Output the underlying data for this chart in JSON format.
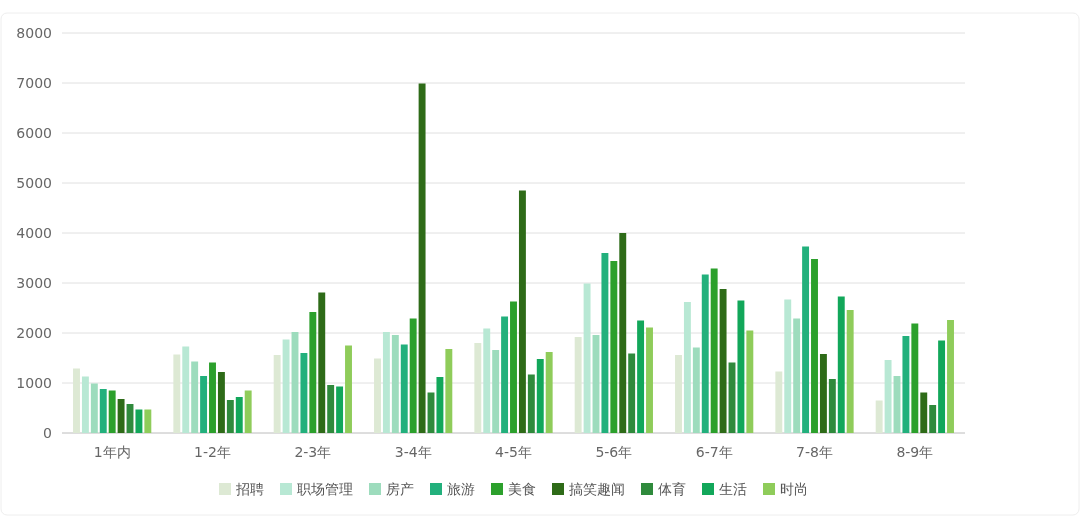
{
  "chart_data": {
    "type": "bar",
    "categories": [
      "1年内",
      "1-2年",
      "2-3年",
      "3-4年",
      "4-5年",
      "5-6年",
      "6-7年",
      "7-8年",
      "8-9年"
    ],
    "series": [
      {
        "name": "招聘",
        "color": "#dde9d4",
        "values": [
          1290,
          1570,
          1560,
          1490,
          1800,
          1920,
          1560,
          1230,
          650
        ]
      },
      {
        "name": "职场管理",
        "color": "#b8e8d4",
        "values": [
          1130,
          1730,
          1870,
          2020,
          2090,
          2990,
          2620,
          2670,
          1460
        ]
      },
      {
        "name": "房产",
        "color": "#9ddcbd",
        "values": [
          990,
          1430,
          2020,
          1960,
          1660,
          1960,
          1710,
          2290,
          1140
        ]
      },
      {
        "name": "旅游",
        "color": "#22b07c",
        "values": [
          880,
          1140,
          1600,
          1770,
          2330,
          3600,
          3170,
          3730,
          1940
        ]
      },
      {
        "name": "美食",
        "color": "#2ca02c",
        "values": [
          850,
          1410,
          2420,
          2290,
          2630,
          3440,
          3290,
          3480,
          2190
        ]
      },
      {
        "name": "搞笑趣闻",
        "color": "#2e6b18",
        "values": [
          680,
          1220,
          2810,
          6990,
          4850,
          4000,
          2880,
          1580,
          810
        ]
      },
      {
        "name": "体育",
        "color": "#2f8a3c",
        "values": [
          580,
          660,
          960,
          810,
          1170,
          1590,
          1410,
          1080,
          560
        ]
      },
      {
        "name": "生活",
        "color": "#12a75a",
        "values": [
          470,
          720,
          930,
          1120,
          1480,
          2250,
          2650,
          2730,
          1850
        ]
      },
      {
        "name": "时尚",
        "color": "#8fcc5a",
        "values": [
          470,
          850,
          1750,
          1680,
          1620,
          2110,
          2050,
          2460,
          2260
        ]
      }
    ],
    "ylim": [
      0,
      8000
    ],
    "yticks": [
      0,
      1000,
      2000,
      3000,
      4000,
      5000,
      6000,
      7000,
      8000
    ],
    "grid": "y",
    "legend": "bottom"
  }
}
